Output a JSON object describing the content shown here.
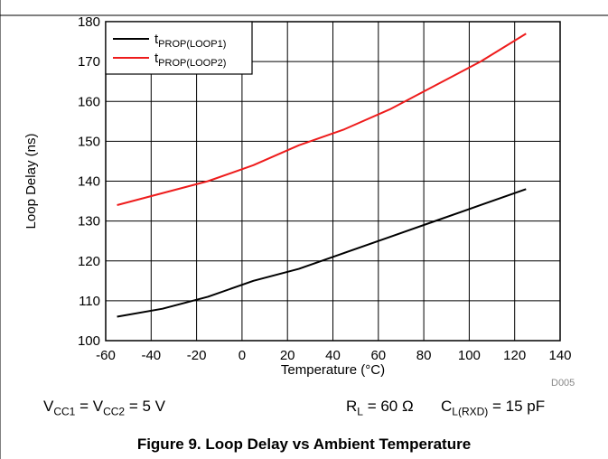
{
  "chart_data": {
    "type": "line",
    "title": "",
    "xlabel": "Temperature (°C)",
    "ylabel": "Loop Delay (ns)",
    "xlim": [
      -60,
      140
    ],
    "ylim": [
      100,
      180
    ],
    "xticks": [
      -60,
      -40,
      -20,
      0,
      20,
      40,
      60,
      80,
      100,
      120,
      140
    ],
    "yticks": [
      100,
      110,
      120,
      130,
      140,
      150,
      160,
      170,
      180
    ],
    "grid": true,
    "legend_position": "top-left",
    "series": [
      {
        "name": "tPROP(LOOP1)",
        "name_main": "t",
        "name_sub": "PROP(LOOP1)",
        "color": "#000000",
        "x": [
          -55,
          -35,
          -15,
          5,
          25,
          45,
          65,
          85,
          105,
          125
        ],
        "y": [
          106,
          108,
          111,
          115,
          118,
          122,
          126,
          130,
          134,
          138
        ]
      },
      {
        "name": "tPROP(LOOP2)",
        "name_main": "t",
        "name_sub": "PROP(LOOP2)",
        "color": "#ee1c1c",
        "x": [
          -55,
          -35,
          -15,
          5,
          25,
          45,
          65,
          85,
          105,
          125
        ],
        "y": [
          134,
          137,
          140,
          144,
          149,
          153,
          158,
          164,
          170,
          177
        ]
      }
    ]
  },
  "figure_code": "D005",
  "conditions": {
    "vcc": {
      "v1": "V",
      "s1": "CC1",
      "mid": " = V",
      "s2": "CC2",
      "end": " = 5 V"
    },
    "rl": {
      "v": "R",
      "s": "L",
      "end": " = 60 Ω"
    },
    "cl": {
      "v": "C",
      "s": "L(RXD)",
      "end": " = 15 pF"
    }
  },
  "caption": "Figure 9. Loop Delay vs Ambient Temperature"
}
